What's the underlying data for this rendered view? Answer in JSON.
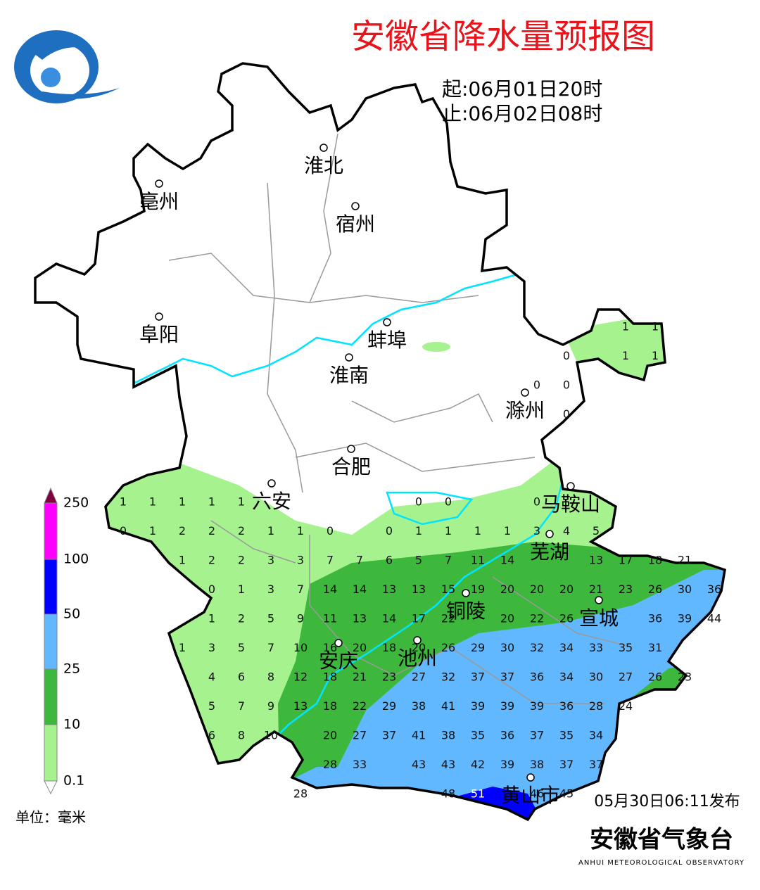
{
  "header": {
    "title": "安徽省降水量预报图",
    "start": "起:06月01日20时",
    "end": "止:06月02日08时"
  },
  "cities": [
    "淮北",
    "亳州",
    "宿州",
    "阜阳",
    "蚌埠",
    "淮南",
    "滁州",
    "合肥",
    "六安",
    "马鞍山",
    "芜湖",
    "铜陵",
    "宣城",
    "安庆",
    "池州",
    "黄山市"
  ],
  "grid": {
    "rows": [
      [
        1,
        1
      ],
      [
        0,
        1,
        1
      ],
      [
        0,
        0
      ],
      [
        0
      ],
      [
        1,
        1,
        1,
        1,
        1,
        0,
        0,
        0
      ],
      [
        0,
        1,
        2,
        2,
        2,
        1,
        1,
        0,
        0,
        1,
        1,
        1,
        1,
        3,
        4,
        5
      ],
      [
        1,
        2,
        2,
        3,
        3,
        7,
        7,
        6,
        5,
        7,
        11,
        14,
        13,
        17,
        18,
        21
      ],
      [
        0,
        1,
        3,
        7,
        14,
        14,
        13,
        13,
        15,
        19,
        20,
        20,
        20,
        21,
        23,
        26,
        30,
        36
      ],
      [
        1,
        2,
        5,
        9,
        11,
        13,
        14,
        17,
        22,
        20,
        22,
        26,
        36,
        39,
        44
      ],
      [
        1,
        3,
        5,
        7,
        10,
        16,
        20,
        18,
        20,
        26,
        29,
        30,
        32,
        34,
        33,
        35,
        31
      ],
      [
        4,
        6,
        8,
        12,
        18,
        21,
        23,
        27,
        32,
        37,
        37,
        36,
        34,
        30,
        27,
        26,
        23
      ],
      [
        5,
        7,
        9,
        13,
        18,
        22,
        29,
        38,
        41,
        39,
        39,
        39,
        36,
        28,
        24
      ],
      [
        6,
        8,
        10,
        20,
        27,
        37,
        41,
        38,
        35,
        36,
        37,
        35,
        34
      ],
      [
        28,
        33,
        43,
        43,
        42,
        39,
        38,
        37,
        37
      ],
      [
        28,
        48,
        51,
        46,
        45
      ]
    ]
  },
  "legend": {
    "ticks": [
      0.1,
      10,
      25,
      50,
      100,
      250
    ],
    "unit": "单位：毫米"
  },
  "footer": {
    "issued": "05月30日06:11发布",
    "org": "安徽省气象台",
    "org_en": "ANHUI METEOROLOGICAL OBSERVATORY"
  }
}
